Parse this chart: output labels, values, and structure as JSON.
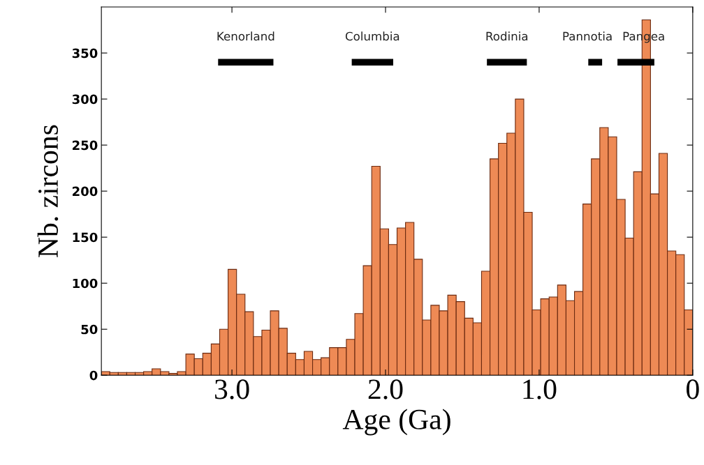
{
  "chart_data": {
    "type": "histogram",
    "xlabel": "Age (Ga)",
    "ylabel": "Nb. zircons",
    "bins": [
      3.85,
      3.795,
      3.74,
      3.685,
      3.63,
      3.575,
      3.52,
      3.465,
      3.41,
      3.355,
      3.3,
      3.245,
      3.19,
      3.135,
      3.08,
      3.025,
      2.97,
      2.915,
      2.86,
      2.805,
      2.75,
      2.695,
      2.64,
      2.585,
      2.53,
      2.475,
      2.42,
      2.365,
      2.31,
      2.255,
      2.2,
      2.145,
      2.09,
      2.035,
      1.98,
      1.925,
      1.87,
      1.815,
      1.76,
      1.705,
      1.65,
      1.595,
      1.54,
      1.485,
      1.43,
      1.375,
      1.32,
      1.265,
      1.21,
      1.155,
      1.1,
      1.045,
      0.99,
      0.935,
      0.88,
      0.825,
      0.77,
      0.715,
      0.66,
      0.605,
      0.55,
      0.495,
      0.44,
      0.385,
      0.33,
      0.275,
      0.22,
      0.165,
      0.11,
      0.055,
      0
    ],
    "series": [
      {
        "type": "histogram",
        "color": "#ee8a55",
        "values": [
          4,
          3,
          3,
          3,
          3,
          4,
          7,
          4,
          2,
          4,
          23,
          18,
          24,
          34,
          50,
          115,
          88,
          69,
          42,
          49,
          70,
          51,
          24,
          17,
          26,
          17,
          19,
          30,
          30,
          39,
          67,
          119,
          227,
          159,
          142,
          160,
          166,
          126,
          60,
          76,
          70,
          87,
          80,
          62,
          57,
          113,
          235,
          252,
          263,
          300,
          177,
          71,
          83,
          85,
          98,
          81,
          91,
          186,
          235,
          269,
          259,
          191,
          149,
          221,
          386,
          197,
          241,
          135,
          131,
          71
        ]
      },
      {
        "type": "line",
        "name": "Kenorland",
        "color": "#000000",
        "x": [
          3.09,
          2.73
        ],
        "values": [
          340,
          340
        ]
      },
      {
        "type": "line",
        "name": "Columbia",
        "color": "#000000",
        "x": [
          2.22,
          1.95
        ],
        "values": [
          340,
          340
        ]
      },
      {
        "type": "line",
        "name": "Rodinia",
        "color": "#000000",
        "x": [
          1.34,
          1.08
        ],
        "values": [
          340,
          340
        ]
      },
      {
        "type": "line",
        "name": "Pannotia",
        "color": "#000000",
        "x": [
          0.68,
          0.59
        ],
        "values": [
          340,
          340
        ]
      },
      {
        "type": "line",
        "name": "Pangea",
        "color": "#000000",
        "x": [
          0.49,
          0.25
        ],
        "values": [
          340,
          340
        ]
      }
    ],
    "xlim": [
      3.85,
      0
    ],
    "xticks": [
      {
        "value": 3,
        "label": "3.0"
      },
      {
        "value": 2,
        "label": "2.0"
      },
      {
        "value": 1,
        "label": "1.0"
      },
      0
    ],
    "ylim": [
      0,
      400
    ],
    "yticks": [
      0,
      50,
      100,
      150,
      200,
      250,
      300,
      350
    ],
    "grid": false,
    "legend": false
  }
}
